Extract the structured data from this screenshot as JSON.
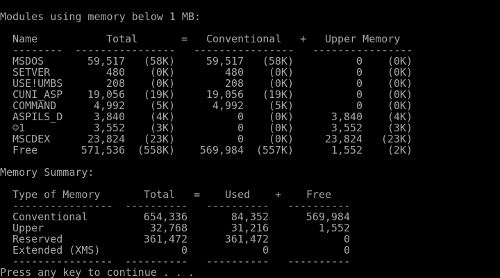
{
  "colors": {
    "foreground": "#a8a8a8",
    "background": "#000000"
  },
  "modules": {
    "title": "Modules using memory below 1 MB:",
    "headers": {
      "name": "Name",
      "total": "Total",
      "eq": "=",
      "conventional": "Conventional",
      "plus": "+",
      "upper": "Upper Memory"
    },
    "dash_name": "--------",
    "dash_col": "----------------",
    "rows": [
      {
        "name": "MSDOS",
        "total": "59,517",
        "total_k": "(58K)",
        "conv": "59,517",
        "conv_k": "(58K)",
        "upper": "0",
        "upper_k": "(0K)"
      },
      {
        "name": "SETVER",
        "total": "480",
        "total_k": "(0K)",
        "conv": "480",
        "conv_k": "(0K)",
        "upper": "0",
        "upper_k": "(0K)"
      },
      {
        "name": "USE!UMBS",
        "total": "208",
        "total_k": "(0K)",
        "conv": "208",
        "conv_k": "(0K)",
        "upper": "0",
        "upper_k": "(0K)"
      },
      {
        "name": "CUNI_ASP",
        "total": "19,056",
        "total_k": "(19K)",
        "conv": "19,056",
        "conv_k": "(19K)",
        "upper": "0",
        "upper_k": "(0K)"
      },
      {
        "name": "COMMAND",
        "total": "4,992",
        "total_k": "(5K)",
        "conv": "4,992",
        "conv_k": "(5K)",
        "upper": "0",
        "upper_k": "(0K)"
      },
      {
        "name": "ASPILS_D",
        "total": "3,840",
        "total_k": "(4K)",
        "conv": "0",
        "conv_k": "(0K)",
        "upper": "3,840",
        "upper_k": "(4K)"
      },
      {
        "name": "☺1",
        "total": "3,552",
        "total_k": "(3K)",
        "conv": "0",
        "conv_k": "(0K)",
        "upper": "3,552",
        "upper_k": "(3K)"
      },
      {
        "name": "MSCDEX",
        "total": "23,824",
        "total_k": "(23K)",
        "conv": "0",
        "conv_k": "(0K)",
        "upper": "23,824",
        "upper_k": "(23K)"
      },
      {
        "name": "Free",
        "total": "571,536",
        "total_k": "(558K)",
        "conv": "569,984",
        "conv_k": "(557K)",
        "upper": "1,552",
        "upper_k": "(2K)"
      }
    ]
  },
  "summary": {
    "title": "Memory Summary:",
    "headers": {
      "type": "Type of Memory",
      "total": "Total",
      "eq": "=",
      "used": "Used",
      "plus": "+",
      "free": "Free"
    },
    "dash_type": "----------------",
    "dash_col": "----------",
    "rows": [
      {
        "type": "Conventional",
        "total": "654,336",
        "used": "84,352",
        "free": "569,984"
      },
      {
        "type": "Upper",
        "total": "32,768",
        "used": "31,216",
        "free": "1,552"
      },
      {
        "type": "Reserved",
        "total": "361,472",
        "used": "361,472",
        "free": "0"
      },
      {
        "type": "Extended (XMS)",
        "total": "0",
        "used": "0",
        "free": "0"
      }
    ]
  },
  "prompt": "Press any key to continue . . ."
}
